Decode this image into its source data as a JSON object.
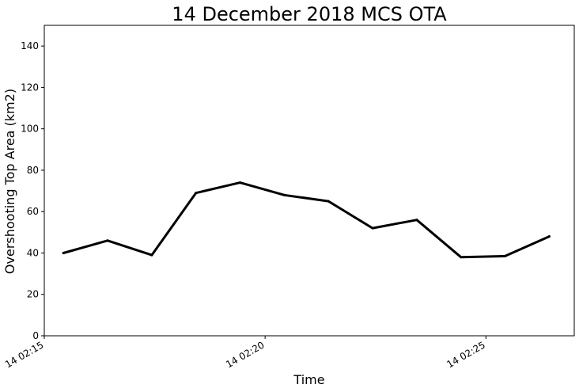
{
  "chart_data": {
    "type": "line",
    "title": "14 December 2018 MCS OTA",
    "xlabel": "Time",
    "ylabel": "Overshooting Top Area (km2)",
    "ylim": [
      0,
      150
    ],
    "xlim": [
      "2018-12-14 02:15:00",
      "2018-12-14 02:27:00"
    ],
    "yticks": [
      0,
      20,
      40,
      60,
      80,
      100,
      120,
      140
    ],
    "xticks": [
      {
        "time": "2018-12-14 02:15:00",
        "label": "14 02:15"
      },
      {
        "time": "2018-12-14 02:20:00",
        "label": "14 02:20"
      },
      {
        "time": "2018-12-14 02:25:00",
        "label": "14 02:25"
      }
    ],
    "grid": false,
    "series": [
      {
        "color": "#000000",
        "x": [
          "2018-12-14 02:15:26",
          "2018-12-14 02:16:26",
          "2018-12-14 02:17:26",
          "2018-12-14 02:18:26",
          "2018-12-14 02:19:26",
          "2018-12-14 02:20:26",
          "2018-12-14 02:21:26",
          "2018-12-14 02:22:26",
          "2018-12-14 02:23:26",
          "2018-12-14 02:24:26",
          "2018-12-14 02:25:26",
          "2018-12-14 02:26:26"
        ],
        "values": [
          40,
          46,
          39,
          69,
          74,
          68,
          65,
          52,
          56,
          38,
          38.5,
          48
        ]
      }
    ]
  }
}
